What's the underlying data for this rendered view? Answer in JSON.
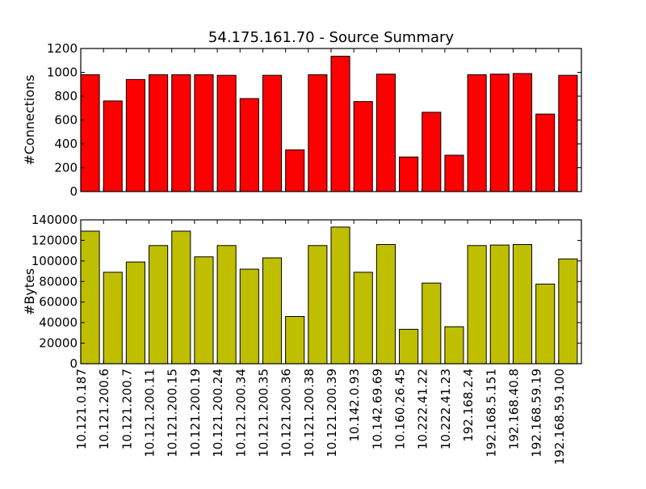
{
  "chart_data": {
    "type": "bar",
    "title": "54.175.161.70 - Source Summary",
    "categories": [
      "10.121.0.187",
      "10.121.200.6",
      "10.121.200.7",
      "10.121.200.11",
      "10.121.200.15",
      "10.121.200.19",
      "10.121.200.24",
      "10.121.200.34",
      "10.121.200.35",
      "10.121.200.36",
      "10.121.200.38",
      "10.121.200.39",
      "10.142.0.93",
      "10.142.69.69",
      "10.160.26.45",
      "10.222.41.22",
      "10.222.41.23",
      "192.168.2.4",
      "192.168.5.151",
      "192.168.40.8",
      "192.168.59.19",
      "192.168.59.100"
    ],
    "panels": [
      {
        "ylabel": "#Connections",
        "ylim": [
          0,
          1200
        ],
        "yticks": [
          0,
          200,
          400,
          600,
          800,
          1000,
          1200
        ],
        "color": "#ff0000",
        "values": [
          980,
          760,
          940,
          980,
          980,
          980,
          975,
          780,
          975,
          350,
          980,
          1135,
          755,
          985,
          290,
          665,
          305,
          980,
          985,
          990,
          650,
          975
        ]
      },
      {
        "ylabel": "#Bytes",
        "ylim": [
          0,
          140000
        ],
        "yticks": [
          0,
          20000,
          40000,
          60000,
          80000,
          100000,
          120000,
          140000
        ],
        "color": "#bfbf00",
        "values": [
          129000,
          89000,
          99000,
          115000,
          129000,
          104000,
          115000,
          92000,
          103000,
          46000,
          115000,
          133000,
          89000,
          116000,
          33500,
          78500,
          36000,
          115000,
          115500,
          116000,
          77500,
          102000
        ]
      }
    ]
  }
}
